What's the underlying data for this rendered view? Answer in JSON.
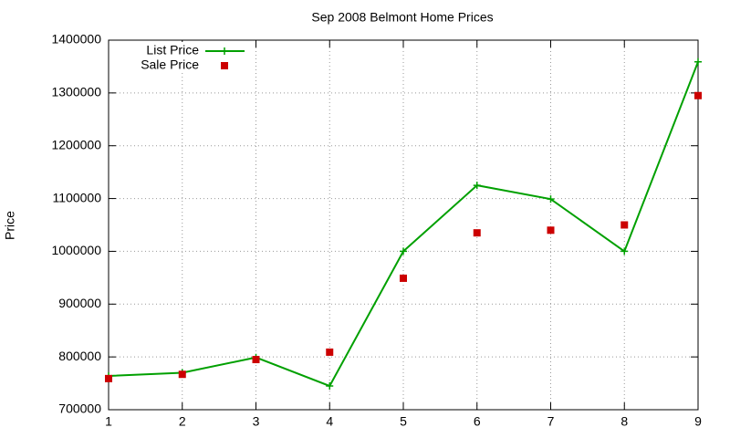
{
  "chart_data": {
    "type": "line",
    "title": "Sep 2008 Belmont Home Prices",
    "y_label": "Price",
    "x": [
      1,
      2,
      3,
      4,
      5,
      6,
      7,
      8,
      9
    ],
    "series": [
      {
        "name": "List Price",
        "color": "#00a000",
        "style": "linespoints",
        "values": [
          764000,
          770000,
          799000,
          745000,
          1000000,
          1125000,
          1099000,
          1000000,
          1359000
        ]
      },
      {
        "name": "Sale Price",
        "color": "#cc0000",
        "style": "points",
        "values": [
          759000,
          767000,
          795000,
          809000,
          949000,
          1035000,
          1040000,
          1050000,
          1295000
        ]
      }
    ],
    "xlim": [
      1,
      9
    ],
    "xticks": [
      1,
      2,
      3,
      4,
      5,
      6,
      7,
      8,
      9
    ],
    "ylim": [
      700000,
      1400000
    ],
    "yticks": [
      700000,
      800000,
      900000,
      1000000,
      1100000,
      1200000,
      1300000,
      1400000
    ],
    "grid": true,
    "legend": "top-left"
  }
}
